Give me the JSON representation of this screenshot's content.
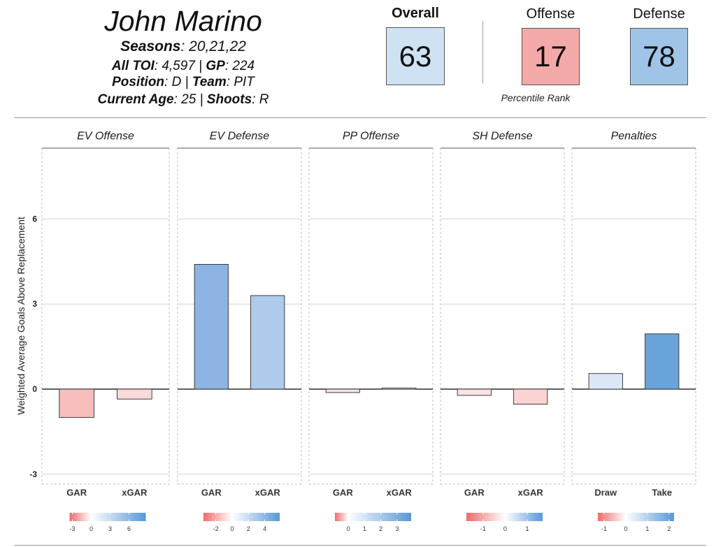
{
  "player": {
    "name": "John Marino",
    "seasons": [
      "Seasons",
      ": 20,21,22"
    ],
    "toi_gp": [
      "All TOI",
      ": 4,597 | ",
      "GP",
      ": 224"
    ],
    "position_team": [
      "Position",
      ": D | ",
      "Team",
      ": PIT"
    ],
    "age_shoots": [
      "Current Age",
      ": 25 | ",
      "Shoots",
      ": R"
    ]
  },
  "ratings": {
    "overall": {
      "label": "Overall",
      "value": 63,
      "color": "#cfe2f3"
    },
    "offense": {
      "label": "Offense",
      "value": 17,
      "color": "#f4a9a9"
    },
    "defense": {
      "label": "Defense",
      "value": 78,
      "color": "#9fc4e7"
    },
    "caption": "Percentile Rank"
  },
  "chart_data": {
    "type": "bar",
    "ylabel": "Weighted Average Goals Above Replacement",
    "ylim": [
      -3.35,
      8.5
    ],
    "yticks": [
      -3,
      0,
      3,
      6
    ],
    "grid": true,
    "legend_colors": {
      "low": "#ef6b6b",
      "mid": "#ffffff",
      "high": "#5898d6"
    },
    "panels": [
      {
        "title": "EV Offense",
        "categories": [
          "GAR",
          "xGAR"
        ],
        "values": [
          -1.0,
          -0.35
        ],
        "colors": [
          "#f8bebe",
          "#fbdada"
        ],
        "legend": {
          "range": [
            -3.44,
            8.67
          ],
          "ticks": [
            -3,
            0,
            3,
            6
          ]
        }
      },
      {
        "title": "EV Defense",
        "categories": [
          "GAR",
          "xGAR"
        ],
        "values": [
          4.4,
          3.3
        ],
        "colors": [
          "#8db4e2",
          "#aecbeb"
        ],
        "legend": {
          "range": [
            -3.51,
            5.83
          ],
          "ticks": [
            -2,
            0,
            2,
            4
          ]
        }
      },
      {
        "title": "PP Offense",
        "categories": [
          "GAR",
          "xGAR"
        ],
        "values": [
          -0.12,
          0.04
        ],
        "colors": [
          "#f9e2e2",
          "#eef3fa"
        ],
        "legend": {
          "range": [
            -0.82,
            3.86
          ],
          "ticks": [
            0,
            1,
            2,
            3
          ]
        }
      },
      {
        "title": "SH Defense",
        "categories": [
          "GAR",
          "xGAR"
        ],
        "values": [
          -0.22,
          -0.53
        ],
        "colors": [
          "#fae3e3",
          "#fcd3d3"
        ],
        "legend": {
          "range": [
            -1.76,
            1.7
          ],
          "ticks": [
            -1,
            0,
            1
          ]
        }
      },
      {
        "title": "Penalties",
        "categories": [
          "Draw",
          "Take"
        ],
        "values": [
          0.55,
          1.95
        ],
        "colors": [
          "#dbe7f6",
          "#68a4d9"
        ],
        "legend": {
          "range": [
            -1.29,
            2.23
          ],
          "ticks": [
            -1,
            0,
            1,
            2
          ]
        }
      }
    ]
  }
}
